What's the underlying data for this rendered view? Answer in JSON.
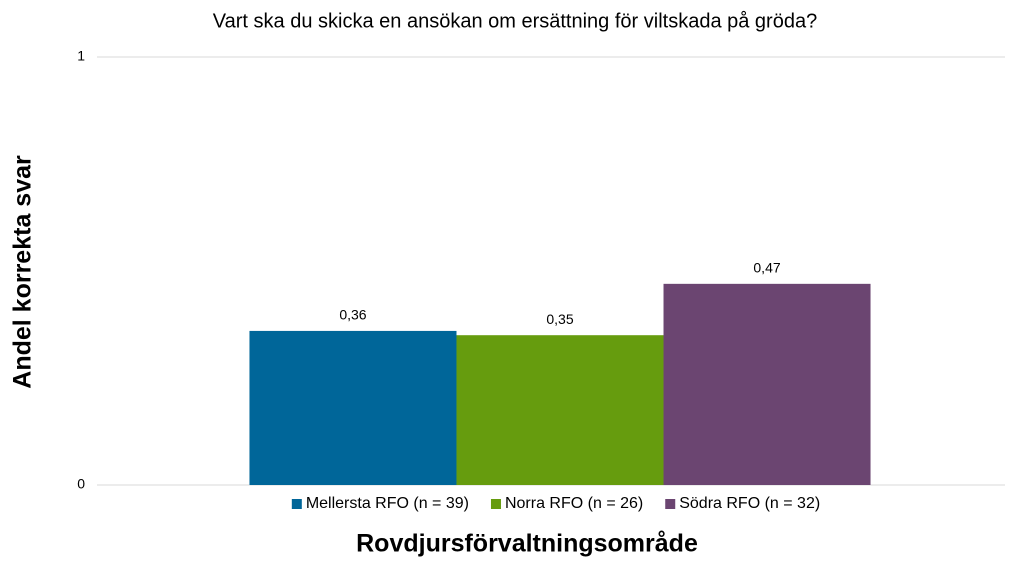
{
  "chart_data": {
    "type": "bar",
    "title": "Vart ska du skicka en ansökan om ersättning för viltskada på gröda?",
    "x_label": "Rovdjursförvaltningsområde",
    "y_label": "Andel korrekta svar",
    "categories": [
      null
    ],
    "series": [
      {
        "name": "Mellersta RFO (n = 39)",
        "color": "#006699",
        "values": [
          0.36
        ],
        "value_labels": [
          "0,36"
        ]
      },
      {
        "name": "Norra RFO (n = 26)",
        "color": "#669c0e",
        "values": [
          0.35
        ],
        "value_labels": [
          "0,35"
        ]
      },
      {
        "name": "Södra RFO (n = 32)",
        "color": "#6b4571",
        "values": [
          0.47
        ],
        "value_labels": [
          "0,47"
        ]
      }
    ],
    "ylim": [
      0,
      1
    ],
    "yticks": [
      0,
      1
    ],
    "grid": true,
    "legend": "bottom"
  }
}
